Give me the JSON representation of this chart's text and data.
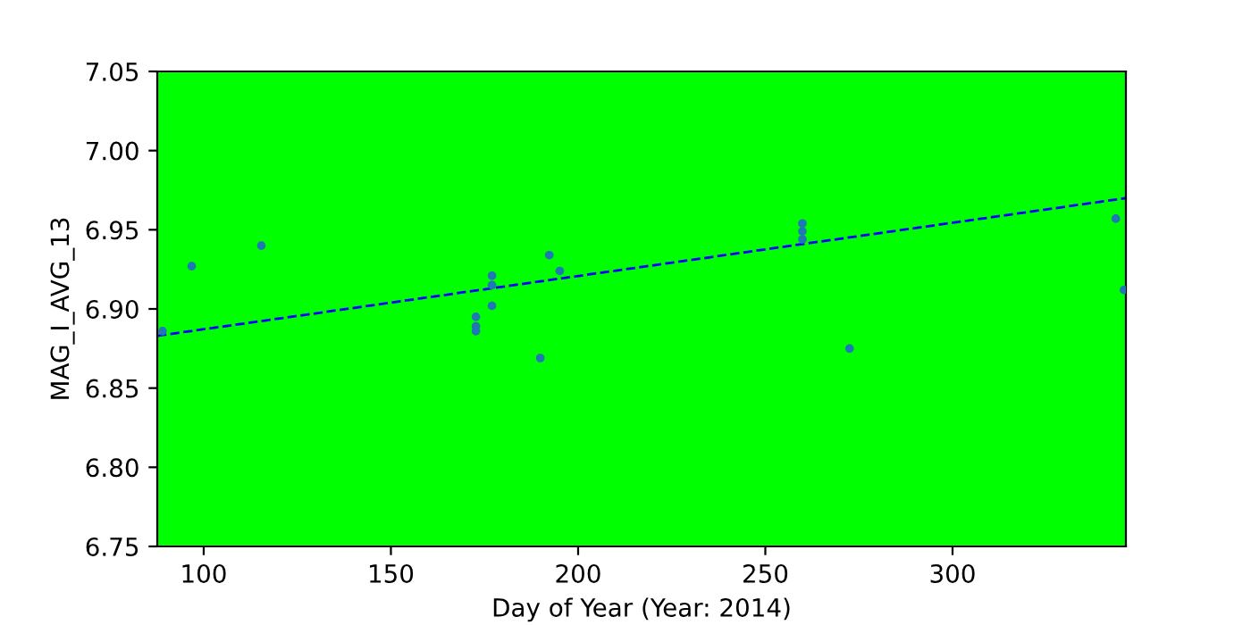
{
  "chart_data": {
    "type": "scatter",
    "xlabel": "Day of Year (Year: 2014)",
    "ylabel": "MAG_I_AVG_13",
    "xlim": [
      87.6,
      346.3
    ],
    "ylim": [
      6.75,
      7.05
    ],
    "xticks": [
      100,
      150,
      200,
      250,
      300
    ],
    "yticks": [
      {
        "value": 6.75,
        "label": "6.75"
      },
      {
        "value": 6.8,
        "label": "6.80"
      },
      {
        "value": 6.85,
        "label": "6.85"
      },
      {
        "value": 6.9,
        "label": "6.90"
      },
      {
        "value": 6.95,
        "label": "6.95"
      },
      {
        "value": 7.0,
        "label": "7.00"
      },
      {
        "value": 7.05,
        "label": "7.05"
      }
    ],
    "grid": false,
    "legend": false,
    "marker": "circle",
    "series": [
      {
        "color": "#1f77b4",
        "x": [
          89.0,
          96.8,
          115.4,
          172.7,
          172.7,
          172.7,
          177.0,
          177.0,
          177.0,
          189.9,
          192.3,
          195.1,
          259.9,
          259.9,
          259.9,
          272.5,
          343.6,
          345.8
        ],
        "values": [
          6.886,
          6.927,
          6.94,
          6.895,
          6.889,
          6.886,
          6.921,
          6.915,
          6.902,
          6.869,
          6.934,
          6.924,
          6.954,
          6.949,
          6.944,
          6.875,
          6.957,
          6.912
        ]
      },
      {
        "type": "line",
        "color": "#0000ff",
        "line_style": "dashed",
        "marker": "none",
        "x": [
          87.6,
          346.3
        ],
        "values": [
          6.883,
          6.97
        ]
      }
    ]
  }
}
